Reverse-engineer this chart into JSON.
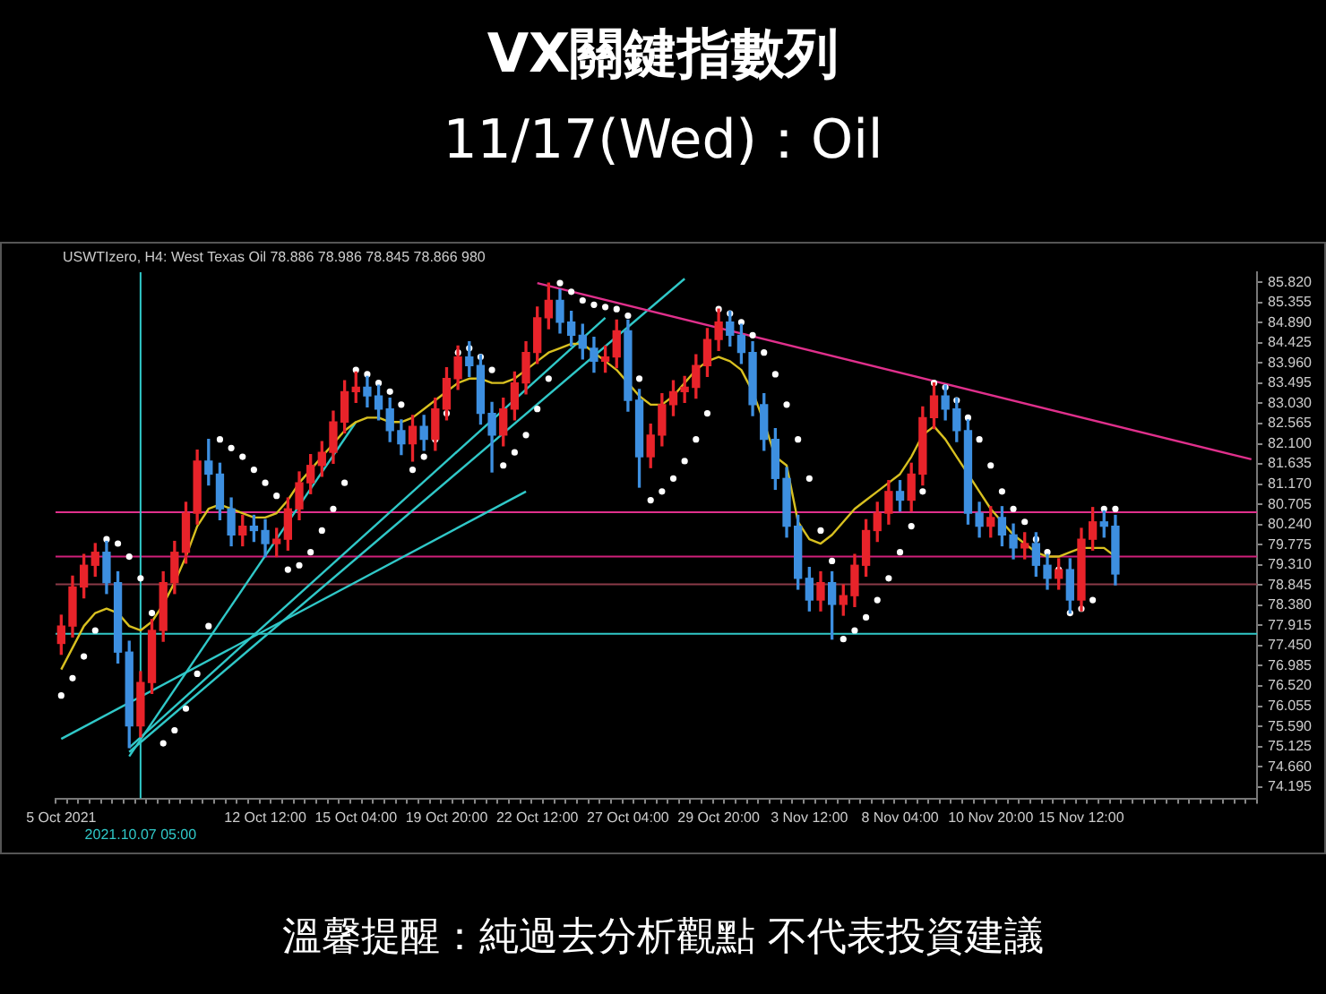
{
  "chart_data": {
    "type": "candlestick",
    "title": "VX關鍵指數列",
    "subtitle": "11/17(Wed)：Oil",
    "annotations": [
      "USWTIzero, H4: West Texas Oil 78.886 78.986 78.845 78.866 980",
      "溫馨提醒：純過去分析觀點 不代表投資建議"
    ],
    "categories": [
      "5 Oct 2021",
      null,
      null,
      null,
      null,
      null,
      null,
      "2021.10.07 05:00",
      null,
      null,
      null,
      null,
      null,
      null,
      null,
      null,
      null,
      null,
      "12 Oct 12:00",
      null,
      null,
      null,
      null,
      null,
      null,
      null,
      "15 Oct 04:00",
      null,
      null,
      null,
      null,
      null,
      null,
      null,
      "19 Oct 20:00",
      null,
      null,
      null,
      null,
      null,
      null,
      null,
      "22 Oct 12:00",
      null,
      null,
      null,
      null,
      null,
      null,
      null,
      "27 Oct 04:00",
      null,
      null,
      null,
      null,
      null,
      null,
      null,
      "29 Oct 20:00",
      null,
      null,
      null,
      null,
      null,
      null,
      null,
      "3 Nov 12:00",
      null,
      null,
      null,
      null,
      null,
      null,
      null,
      "8 Nov 04:00",
      null,
      null,
      null,
      null,
      null,
      null,
      null,
      "10 Nov 20:00",
      null,
      null,
      null,
      null,
      null,
      null,
      null,
      "15 Nov 12:00",
      null,
      null,
      null,
      null,
      null,
      null,
      null,
      null,
      null,
      null,
      null,
      null,
      null,
      null,
      null
    ],
    "ohlc": [
      [
        77.5,
        78.15,
        77.25,
        77.9
      ],
      [
        77.9,
        79.05,
        77.65,
        78.8
      ],
      [
        78.8,
        79.55,
        78.55,
        79.3
      ],
      [
        79.3,
        79.8,
        79.05,
        79.6
      ],
      [
        79.6,
        79.85,
        78.65,
        78.9
      ],
      [
        78.9,
        79.15,
        77.05,
        77.3
      ],
      [
        77.3,
        77.55,
        75.1,
        75.6
      ],
      [
        75.6,
        76.85,
        75.35,
        76.6
      ],
      [
        76.6,
        78.05,
        76.35,
        77.8
      ],
      [
        77.8,
        79.15,
        77.55,
        78.9
      ],
      [
        78.9,
        79.85,
        78.65,
        79.6
      ],
      [
        79.6,
        80.75,
        79.35,
        80.5
      ],
      [
        80.5,
        81.95,
        80.25,
        81.7
      ],
      [
        81.7,
        82.2,
        81.15,
        81.4
      ],
      [
        81.4,
        81.65,
        80.35,
        80.6
      ],
      [
        80.6,
        80.85,
        79.75,
        80.0
      ],
      [
        80.0,
        80.45,
        79.75,
        80.2
      ],
      [
        80.2,
        80.45,
        79.85,
        80.1
      ],
      [
        80.1,
        80.35,
        79.5,
        79.8
      ],
      [
        79.8,
        80.15,
        79.5,
        79.9
      ],
      [
        79.9,
        80.85,
        79.65,
        80.6
      ],
      [
        80.6,
        81.45,
        80.35,
        81.2
      ],
      [
        81.2,
        81.85,
        80.95,
        81.6
      ],
      [
        81.6,
        82.15,
        81.35,
        81.9
      ],
      [
        81.9,
        82.85,
        81.65,
        82.6
      ],
      [
        82.6,
        83.55,
        82.35,
        83.3
      ],
      [
        83.3,
        83.75,
        83.05,
        83.4
      ],
      [
        83.4,
        83.65,
        82.95,
        83.2
      ],
      [
        83.2,
        83.45,
        82.65,
        82.9
      ],
      [
        82.9,
        83.15,
        82.15,
        82.4
      ],
      [
        82.4,
        82.65,
        81.85,
        82.1
      ],
      [
        82.1,
        82.75,
        81.7,
        82.5
      ],
      [
        82.5,
        82.75,
        81.95,
        82.2
      ],
      [
        82.2,
        83.15,
        81.95,
        82.9
      ],
      [
        82.9,
        83.85,
        82.65,
        83.6
      ],
      [
        83.6,
        84.35,
        83.35,
        84.1
      ],
      [
        84.1,
        84.45,
        83.65,
        83.9
      ],
      [
        83.9,
        84.15,
        82.55,
        82.8
      ],
      [
        82.8,
        83.05,
        81.45,
        82.3
      ],
      [
        82.3,
        83.15,
        82.05,
        82.9
      ],
      [
        82.9,
        83.75,
        82.65,
        83.5
      ],
      [
        83.5,
        84.45,
        83.25,
        84.2
      ],
      [
        84.2,
        85.25,
        83.95,
        85.0
      ],
      [
        85.0,
        85.8,
        84.75,
        85.4
      ],
      [
        85.4,
        85.65,
        84.65,
        84.9
      ],
      [
        84.9,
        85.15,
        84.35,
        84.6
      ],
      [
        84.6,
        84.85,
        84.05,
        84.3
      ],
      [
        84.3,
        84.55,
        83.75,
        84.0
      ],
      [
        84.0,
        84.35,
        83.75,
        84.1
      ],
      [
        84.1,
        84.95,
        83.85,
        84.7
      ],
      [
        84.7,
        84.95,
        82.85,
        83.1
      ],
      [
        83.1,
        83.35,
        81.1,
        81.8
      ],
      [
        81.8,
        82.55,
        81.55,
        82.3
      ],
      [
        82.3,
        83.25,
        82.05,
        83.0
      ],
      [
        83.0,
        83.55,
        82.75,
        83.3
      ],
      [
        83.3,
        83.65,
        83.05,
        83.4
      ],
      [
        83.4,
        84.15,
        83.15,
        83.9
      ],
      [
        83.9,
        84.75,
        83.65,
        84.5
      ],
      [
        84.5,
        85.2,
        84.25,
        84.9
      ],
      [
        84.9,
        85.15,
        84.35,
        84.6
      ],
      [
        84.6,
        84.85,
        83.95,
        84.2
      ],
      [
        84.2,
        84.45,
        82.75,
        83.0
      ],
      [
        83.0,
        83.25,
        81.95,
        82.2
      ],
      [
        82.2,
        82.45,
        81.05,
        81.3
      ],
      [
        81.3,
        81.55,
        79.95,
        80.2
      ],
      [
        80.2,
        80.45,
        78.75,
        79.0
      ],
      [
        79.0,
        79.25,
        78.25,
        78.5
      ],
      [
        78.5,
        79.15,
        78.25,
        78.9
      ],
      [
        78.9,
        79.15,
        77.6,
        78.4
      ],
      [
        78.4,
        78.85,
        78.15,
        78.6
      ],
      [
        78.6,
        79.55,
        78.35,
        79.3
      ],
      [
        79.3,
        80.35,
        79.05,
        80.1
      ],
      [
        80.1,
        80.75,
        79.85,
        80.5
      ],
      [
        80.5,
        81.25,
        80.25,
        81.0
      ],
      [
        81.0,
        81.25,
        80.55,
        80.8
      ],
      [
        80.8,
        81.65,
        80.55,
        81.4
      ],
      [
        81.4,
        82.95,
        81.15,
        82.7
      ],
      [
        82.7,
        83.5,
        82.45,
        83.2
      ],
      [
        83.2,
        83.45,
        82.65,
        82.9
      ],
      [
        82.9,
        83.15,
        82.15,
        82.4
      ],
      [
        82.4,
        82.65,
        80.25,
        80.5
      ],
      [
        80.5,
        80.75,
        79.95,
        80.2
      ],
      [
        80.2,
        80.65,
        79.95,
        80.4
      ],
      [
        80.4,
        80.65,
        79.75,
        80.0
      ],
      [
        80.0,
        80.25,
        79.45,
        79.7
      ],
      [
        79.7,
        80.05,
        79.45,
        79.8
      ],
      [
        79.8,
        80.05,
        79.05,
        79.3
      ],
      [
        79.3,
        79.55,
        78.75,
        79.0
      ],
      [
        79.0,
        79.45,
        78.75,
        79.2
      ],
      [
        79.2,
        79.45,
        78.2,
        78.5
      ],
      [
        78.5,
        80.15,
        78.25,
        79.9
      ],
      [
        79.9,
        80.63,
        79.65,
        80.3
      ],
      [
        80.3,
        80.55,
        79.95,
        80.2
      ],
      [
        80.2,
        80.45,
        78.85,
        79.1
      ],
      null,
      null,
      null,
      null,
      null,
      null,
      null,
      null,
      null,
      null,
      null,
      null
    ],
    "series": [
      {
        "type": "line",
        "color": "#d8c020",
        "marker": "none",
        "values": [
          76.9,
          77.4,
          77.9,
          78.2,
          78.3,
          78.2,
          77.9,
          77.8,
          78.0,
          78.4,
          78.9,
          79.5,
          80.2,
          80.6,
          80.7,
          80.6,
          80.5,
          80.4,
          80.4,
          80.5,
          80.8,
          81.2,
          81.5,
          81.8,
          82.1,
          82.4,
          82.6,
          82.7,
          82.7,
          82.6,
          82.6,
          82.7,
          82.9,
          83.1,
          83.3,
          83.5,
          83.6,
          83.6,
          83.5,
          83.5,
          83.6,
          83.8,
          84.0,
          84.2,
          84.3,
          84.4,
          84.4,
          84.2,
          84.0,
          83.8,
          83.5,
          83.2,
          83.0,
          83.0,
          83.2,
          83.5,
          83.8,
          84.0,
          84.1,
          84.0,
          83.8,
          83.3,
          82.6,
          81.8,
          81.6,
          80.3,
          79.9,
          79.8,
          80.0,
          80.3,
          80.6,
          80.8,
          81.0,
          81.2,
          81.4,
          81.8,
          82.3,
          82.5,
          82.2,
          81.8,
          81.4,
          81.0,
          80.6,
          80.3,
          80.0,
          79.8,
          79.6,
          79.5,
          79.5,
          79.6,
          79.7,
          79.7,
          79.7,
          79.5,
          null,
          null,
          null,
          null,
          null,
          null,
          null,
          null,
          null,
          null,
          null,
          null
        ]
      },
      {
        "type": "scatter",
        "color": "#ffffff",
        "marker": "circle",
        "values": [
          76.3,
          76.7,
          77.2,
          77.8,
          79.9,
          79.8,
          79.5,
          79.0,
          78.2,
          75.2,
          75.5,
          76.0,
          76.8,
          77.9,
          82.2,
          82.0,
          81.8,
          81.5,
          81.2,
          80.9,
          79.2,
          79.3,
          79.6,
          80.1,
          80.6,
          81.2,
          83.8,
          83.7,
          83.5,
          83.3,
          83.0,
          81.5,
          81.8,
          82.2,
          82.8,
          84.2,
          84.3,
          84.1,
          83.8,
          81.6,
          81.9,
          82.3,
          82.9,
          83.6,
          85.8,
          85.6,
          85.4,
          85.3,
          85.25,
          85.2,
          85.05,
          83.6,
          80.8,
          81.0,
          81.3,
          81.7,
          82.2,
          82.8,
          85.2,
          85.1,
          84.9,
          84.6,
          84.2,
          83.7,
          83.0,
          82.2,
          81.3,
          80.1,
          79.4,
          77.6,
          77.8,
          78.1,
          78.5,
          79.0,
          79.6,
          80.2,
          81.0,
          83.5,
          83.4,
          83.1,
          82.7,
          82.2,
          81.6,
          81.0,
          80.6,
          80.3,
          79.9,
          79.6,
          79.2,
          78.2,
          78.3,
          78.5,
          80.6,
          80.6,
          null,
          null,
          null,
          null,
          null,
          null,
          null,
          null,
          null,
          null,
          null,
          null
        ]
      },
      {
        "type": "line",
        "color": "#e0308c",
        "marker": "none",
        "values": [
          null,
          null,
          null,
          null,
          null,
          null,
          null,
          null,
          null,
          null,
          null,
          null,
          null,
          null,
          null,
          null,
          null,
          null,
          null,
          null,
          null,
          null,
          null,
          null,
          null,
          null,
          null,
          null,
          null,
          null,
          null,
          null,
          null,
          null,
          null,
          null,
          null,
          null,
          null,
          null,
          null,
          null,
          85.8,
          null,
          null,
          null,
          null,
          null,
          null,
          null,
          null,
          null,
          null,
          null,
          null,
          null,
          null,
          null,
          null,
          null,
          null,
          null,
          null,
          null,
          null,
          null,
          null,
          null,
          null,
          null,
          null,
          null,
          null,
          null,
          null,
          null,
          null,
          null,
          null,
          null,
          null,
          null,
          null,
          null,
          null,
          null,
          null,
          null,
          null,
          null,
          null,
          null,
          null,
          null,
          null,
          null,
          null,
          null,
          null,
          null,
          null,
          null,
          null,
          null,
          null,
          81.74
        ]
      },
      {
        "type": "line",
        "color": "#30c8c8",
        "marker": "none",
        "values": [
          null,
          null,
          null,
          null,
          null,
          null,
          75.0,
          null,
          null,
          null,
          null,
          null,
          null,
          null,
          null,
          null,
          null,
          null,
          null,
          null,
          null,
          null,
          null,
          null,
          null,
          null,
          null,
          null,
          null,
          null,
          null,
          null,
          null,
          null,
          null,
          null,
          null,
          null,
          null,
          null,
          null,
          null,
          null,
          null,
          null,
          null,
          null,
          null,
          null,
          null,
          null,
          null,
          null,
          null,
          null,
          85.9,
          null,
          null,
          null,
          null,
          null,
          null,
          null,
          null,
          null,
          null,
          null,
          null,
          null,
          null,
          null,
          null,
          null,
          null,
          null,
          null,
          null,
          null,
          null,
          null,
          null,
          null,
          null,
          null,
          null,
          null,
          null,
          null,
          null,
          null,
          null,
          null,
          null,
          null,
          null,
          null,
          null,
          null,
          null,
          null,
          null,
          null,
          null,
          null,
          null,
          null
        ]
      },
      {
        "type": "line",
        "color": "#30c8c8",
        "marker": "none",
        "values": [
          null,
          null,
          null,
          null,
          null,
          null,
          75.1,
          null,
          null,
          null,
          null,
          null,
          null,
          null,
          null,
          null,
          null,
          null,
          null,
          null,
          null,
          null,
          null,
          null,
          null,
          null,
          null,
          null,
          null,
          null,
          null,
          null,
          null,
          null,
          null,
          null,
          null,
          null,
          null,
          null,
          null,
          null,
          null,
          null,
          null,
          null,
          null,
          null,
          85.0,
          null,
          null,
          null,
          null,
          null,
          null,
          null,
          null,
          null,
          null,
          null,
          null,
          null,
          null,
          null,
          null,
          null,
          null,
          null,
          null,
          null,
          null,
          null,
          null,
          null,
          null,
          null,
          null,
          null,
          null,
          null,
          null,
          null,
          null,
          null,
          null,
          null,
          null,
          null,
          null,
          null,
          null,
          null,
          null,
          null,
          null,
          null,
          null,
          null,
          null,
          null,
          null,
          null,
          null,
          null,
          null,
          null
        ]
      },
      {
        "type": "line",
        "color": "#30c8c8",
        "marker": "none",
        "values": [
          75.3,
          null,
          null,
          null,
          null,
          null,
          null,
          null,
          null,
          null,
          null,
          null,
          null,
          null,
          null,
          null,
          null,
          null,
          null,
          null,
          null,
          null,
          null,
          null,
          null,
          null,
          null,
          null,
          null,
          null,
          null,
          null,
          null,
          null,
          null,
          null,
          null,
          null,
          null,
          null,
          null,
          81.0,
          null,
          null,
          null,
          null,
          null,
          null,
          null,
          null,
          null,
          null,
          null,
          null,
          null,
          null,
          null,
          null,
          null,
          null,
          null,
          null,
          null,
          null,
          null,
          null,
          null,
          null,
          null,
          null,
          null,
          null,
          null,
          null,
          null,
          null,
          null,
          null,
          null,
          null,
          null,
          null,
          null,
          null,
          null,
          null,
          null,
          null,
          null,
          null,
          null,
          null,
          null,
          null,
          null,
          null,
          null,
          null,
          null,
          null,
          null,
          null,
          null,
          null,
          null,
          null
        ]
      },
      {
        "type": "line",
        "color": "#30c8c8",
        "marker": "none",
        "values": [
          null,
          null,
          null,
          null,
          null,
          null,
          74.9,
          null,
          null,
          null,
          null,
          null,
          null,
          null,
          null,
          null,
          null,
          null,
          null,
          null,
          null,
          null,
          null,
          null,
          null,
          null,
          82.6,
          null,
          null,
          null,
          null,
          null,
          null,
          null,
          null,
          null,
          null,
          null,
          null,
          null,
          null,
          null,
          null,
          null,
          null,
          null,
          null,
          null,
          null,
          null,
          null,
          null,
          null,
          null,
          null,
          null,
          null,
          null,
          null,
          null,
          null,
          null,
          null,
          null,
          null,
          null,
          null,
          null,
          null,
          null,
          null,
          null,
          null,
          null,
          null,
          null,
          null,
          null,
          null,
          null,
          null,
          null,
          null,
          null,
          null,
          null,
          null,
          null,
          null,
          null,
          null,
          null,
          null,
          null,
          null,
          null,
          null,
          null,
          null,
          null,
          null,
          null,
          null,
          null,
          null,
          null
        ]
      }
    ],
    "ylim": [
      73.93,
      86.05
    ],
    "yticks": [
      74.195,
      {
        "value": 74.66,
        "label": "74.660"
      },
      75.125,
      {
        "value": 75.59,
        "label": "75.590"
      },
      76.055,
      {
        "value": 76.52,
        "label": "76.520"
      },
      76.985,
      {
        "value": 77.45,
        "label": "77.450"
      },
      77.915,
      {
        "value": 78.38,
        "label": "78.380"
      },
      78.845,
      {
        "value": 79.31,
        "label": "79.310"
      },
      79.775,
      {
        "value": 80.24,
        "label": "80.240"
      },
      80.705,
      {
        "value": 81.17,
        "label": "81.170"
      },
      81.635,
      {
        "value": 82.1,
        "label": "82.100"
      },
      82.565,
      {
        "value": 83.03,
        "label": "83.030"
      },
      83.495,
      {
        "value": 83.96,
        "label": "83.960"
      },
      84.425,
      {
        "value": 84.89,
        "label": "84.890"
      },
      85.355,
      {
        "value": 85.82,
        "label": "85.820"
      }
    ],
    "ref_lines": [
      {
        "axis": "y",
        "value": 80.52,
        "color": "#e0308c"
      },
      {
        "axis": "y",
        "value": 79.5,
        "color": "#d0207a"
      },
      {
        "axis": "y",
        "value": 78.86,
        "color": "#8a3a48"
      },
      {
        "axis": "y",
        "value": 77.72,
        "color": "#30c8c8"
      },
      {
        "axis": "x",
        "value": "2021.10.07 05:00",
        "color": "#30c8c8"
      }
    ],
    "legend": false
  }
}
